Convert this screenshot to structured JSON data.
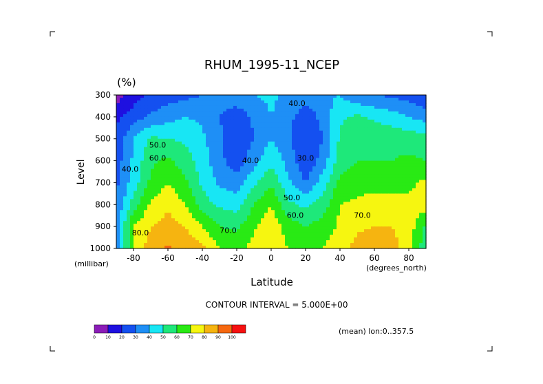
{
  "chart_data": {
    "type": "heatmap",
    "title": "RHUM_1995-11_NCEP",
    "units": "(%)",
    "xlabel": "Latitude",
    "ylabel": "Level",
    "x_unit_label": "(degrees_north)",
    "y_unit_label": "(millibar)",
    "xlim": [
      -90,
      90
    ],
    "ylim": [
      1000,
      300
    ],
    "x_ticks": [
      -80,
      -60,
      -40,
      -20,
      0,
      20,
      40,
      60,
      80
    ],
    "x_tick_labels": [
      "-80",
      "-60",
      "-40",
      "-20",
      "0",
      "20",
      "40",
      "60",
      "80"
    ],
    "y_ticks": [
      300,
      400,
      500,
      600,
      700,
      800,
      900,
      1000
    ],
    "y_tick_labels": [
      "300",
      "400",
      "500",
      "600",
      "700",
      "800",
      "900",
      "1000"
    ],
    "contour_interval_text": "CONTOUR INTERVAL = 5.000E+00",
    "mean_note": "(mean) lon:0..357.5",
    "colorbar": {
      "levels": [
        0,
        10,
        20,
        30,
        40,
        50,
        60,
        70,
        80,
        90,
        100
      ],
      "labels": [
        "0",
        "10",
        "20",
        "30",
        "40",
        "50",
        "60",
        "70",
        "80",
        "90",
        "100"
      ],
      "colors": [
        "#8b1cb8",
        "#1e10e0",
        "#1450f0",
        "#1e8ff6",
        "#18e6f4",
        "#1ee87a",
        "#29ea14",
        "#f6f610",
        "#f6b410",
        "#f66810",
        "#f61010"
      ]
    },
    "contour_labels": [
      {
        "text": "40.0",
        "lat": 15,
        "lev": 350
      },
      {
        "text": "50.0",
        "lat": -66,
        "lev": 540
      },
      {
        "text": "60.0",
        "lat": -66,
        "lev": 600
      },
      {
        "text": "40.0",
        "lat": -82,
        "lev": 650
      },
      {
        "text": "40.0",
        "lat": -12,
        "lev": 610
      },
      {
        "text": "30.0",
        "lat": 20,
        "lev": 600
      },
      {
        "text": "50.0",
        "lat": 12,
        "lev": 780
      },
      {
        "text": "60.0",
        "lat": 14,
        "lev": 860
      },
      {
        "text": "70.0",
        "lat": 53,
        "lev": 860
      },
      {
        "text": "70.0",
        "lat": -25,
        "lev": 930
      },
      {
        "text": "80.0",
        "lat": -76,
        "lev": 940
      }
    ],
    "lats": [
      -90,
      -80,
      -70,
      -60,
      -50,
      -40,
      -30,
      -20,
      -10,
      0,
      10,
      20,
      30,
      40,
      50,
      60,
      70,
      80,
      90
    ],
    "levels": [
      300,
      400,
      500,
      600,
      700,
      800,
      900,
      1000
    ],
    "values": [
      [
        5,
        15,
        22,
        25,
        27,
        30,
        33,
        37,
        40,
        42,
        38,
        35,
        38,
        40,
        32,
        30,
        28,
        25,
        22
      ],
      [
        18,
        25,
        32,
        36,
        40,
        38,
        30,
        24,
        32,
        40,
        33,
        24,
        33,
        48,
        52,
        48,
        45,
        40,
        35
      ],
      [
        22,
        40,
        52,
        50,
        48,
        42,
        32,
        20,
        30,
        40,
        32,
        20,
        30,
        52,
        58,
        57,
        56,
        56,
        55
      ],
      [
        25,
        42,
        58,
        62,
        55,
        45,
        33,
        24,
        36,
        48,
        36,
        22,
        34,
        55,
        60,
        60,
        60,
        62,
        60
      ],
      [
        28,
        45,
        62,
        70,
        62,
        48,
        38,
        34,
        48,
        58,
        42,
        30,
        45,
        63,
        66,
        66,
        66,
        68,
        72
      ],
      [
        30,
        55,
        72,
        78,
        70,
        55,
        48,
        46,
        60,
        70,
        52,
        48,
        55,
        70,
        72,
        75,
        74,
        72,
        76
      ],
      [
        35,
        70,
        80,
        84,
        80,
        70,
        60,
        58,
        68,
        78,
        65,
        60,
        64,
        72,
        78,
        80,
        80,
        76,
        58
      ],
      [
        30,
        72,
        85,
        92,
        86,
        82,
        70,
        66,
        74,
        78,
        70,
        66,
        70,
        76,
        84,
        86,
        84,
        74,
        52
      ]
    ]
  }
}
